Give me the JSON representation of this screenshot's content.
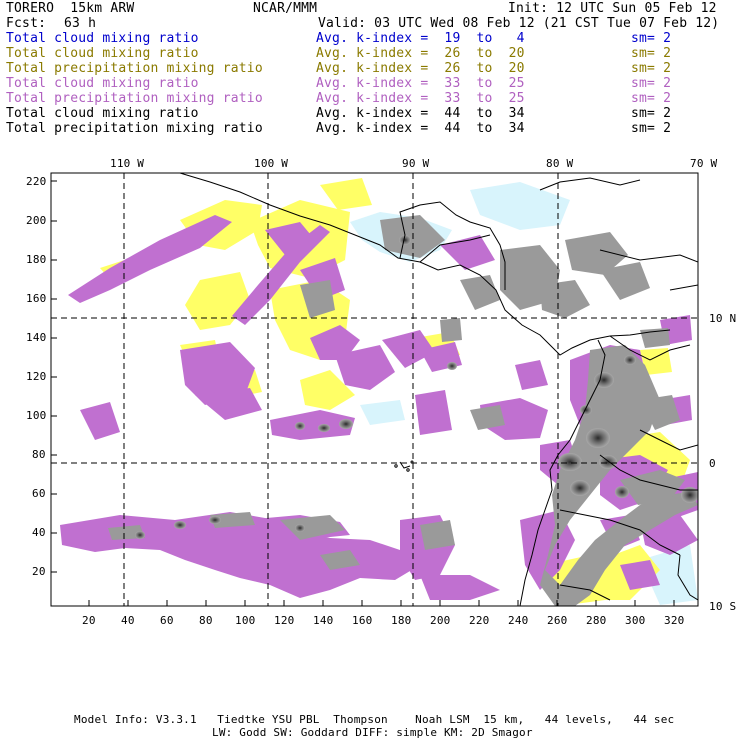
{
  "header": {
    "model": "TORERO  15km ARW",
    "org": "NCAR/MMM",
    "init": "Init: 12 UTC Sun 05 Feb 12",
    "fcst_label": "Fcst:",
    "fcst_value": "63 h",
    "valid": "Valid: 03 UTC Wed 08 Feb 12 (21 CST Tue 07 Feb 12)"
  },
  "legend": [
    {
      "field": "Total cloud mixing ratio",
      "kindex": "Avg. k-index =  19  to   4",
      "sm": "sm= 2",
      "color": "#0000cc"
    },
    {
      "field": "Total cloud mixing ratio",
      "kindex": "Avg. k-index =  26  to  20",
      "sm": "sm= 2",
      "color": "#8a7a00"
    },
    {
      "field": "Total precipitation mixing ratio",
      "kindex": "Avg. k-index =  26  to  20",
      "sm": "sm= 2",
      "color": "#8a7a00"
    },
    {
      "field": "Total cloud mixing ratio",
      "kindex": "Avg. k-index =  33  to  25",
      "sm": "sm= 2",
      "color": "#b060c0"
    },
    {
      "field": "Total precipitation mixing ratio",
      "kindex": "Avg. k-index =  33  to  25",
      "sm": "sm= 2",
      "color": "#b060c0"
    },
    {
      "field": "Total cloud mixing ratio",
      "kindex": "Avg. k-index =  44  to  34",
      "sm": "sm= 2",
      "color": "#000000"
    },
    {
      "field": "Total precipitation mixing ratio",
      "kindex": "Avg. k-index =  44  to  34",
      "sm": "sm= 2",
      "color": "#000000"
    }
  ],
  "axes": {
    "top_labels": [
      "110 W",
      "100 W",
      "90 W",
      "80 W",
      "70 W"
    ],
    "right_labels": [
      "10 N",
      "0",
      "10 S"
    ],
    "left_ticks": [
      "220",
      "200",
      "180",
      "160",
      "140",
      "120",
      "100",
      "80",
      "60",
      "40",
      "20"
    ],
    "bottom_ticks": [
      "20",
      "40",
      "60",
      "80",
      "100",
      "120",
      "140",
      "160",
      "180",
      "200",
      "220",
      "240",
      "260",
      "280",
      "300",
      "320"
    ]
  },
  "footer": {
    "line1": "Model Info: V3.3.1   Tiedtke YSU PBL  Thompson    Noah LSM  15 km,   44 levels,   44 sec",
    "line2": "LW: Godd SW: Goddard DIFF: simple KM: 2D Smagor"
  },
  "colors": {
    "yellow": "#ffff66",
    "purple": "#c070d0",
    "gray": "#9a9a9a",
    "cyan": "#d8f4fc"
  }
}
